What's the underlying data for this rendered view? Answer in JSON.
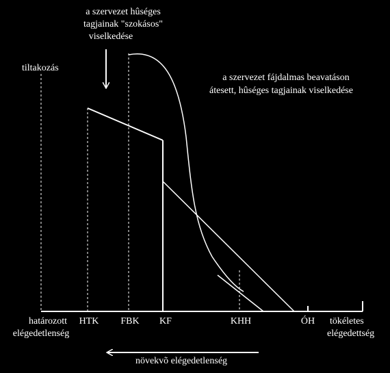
{
  "annotations": {
    "usual_behavior": [
      "a szervezet hûséges",
      "tagjainak \"szokásos\"",
      "viselkedése"
    ],
    "protest": "tiltakozás",
    "initiated_behavior": [
      "a szervezet fájdalmas beavatáson",
      "átesett, hûséges tagjainak viselkedése"
    ],
    "arrow_label": "növekvõ elégedetlenség"
  },
  "axis": {
    "left_label": [
      "határozott",
      "elégedetlenség"
    ],
    "ticks": [
      "HTK",
      "FBK",
      "KF",
      "KHH",
      "ÓH"
    ],
    "right_label": [
      "tökéletes",
      "elégedettség"
    ]
  }
}
